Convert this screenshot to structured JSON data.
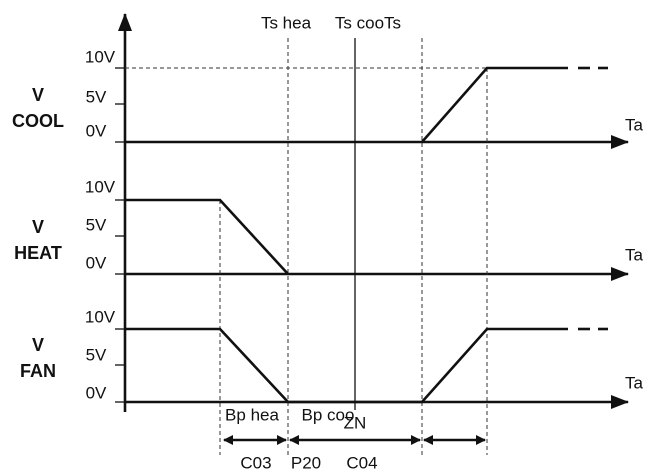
{
  "header": {
    "ts_heat": "Ts hea",
    "ts_cool": "Ts cooTs"
  },
  "panels": [
    {
      "name": [
        "V",
        "COOL"
      ],
      "levels": [
        "10V",
        "5V",
        "0V"
      ],
      "axis": "Ta"
    },
    {
      "name": [
        "V",
        "HEAT"
      ],
      "levels": [
        "10V",
        "5V",
        "0V"
      ],
      "axis": "Ta"
    },
    {
      "name": [
        "V",
        "FAN"
      ],
      "levels": [
        "10V",
        "5V",
        "0V"
      ],
      "axis": "Ta"
    }
  ],
  "bands": {
    "bp_heat": "Bp hea",
    "bp_cool": "Bp coo",
    "zone": "ZN"
  },
  "params": [
    "C03",
    "P20",
    "C04"
  ]
}
